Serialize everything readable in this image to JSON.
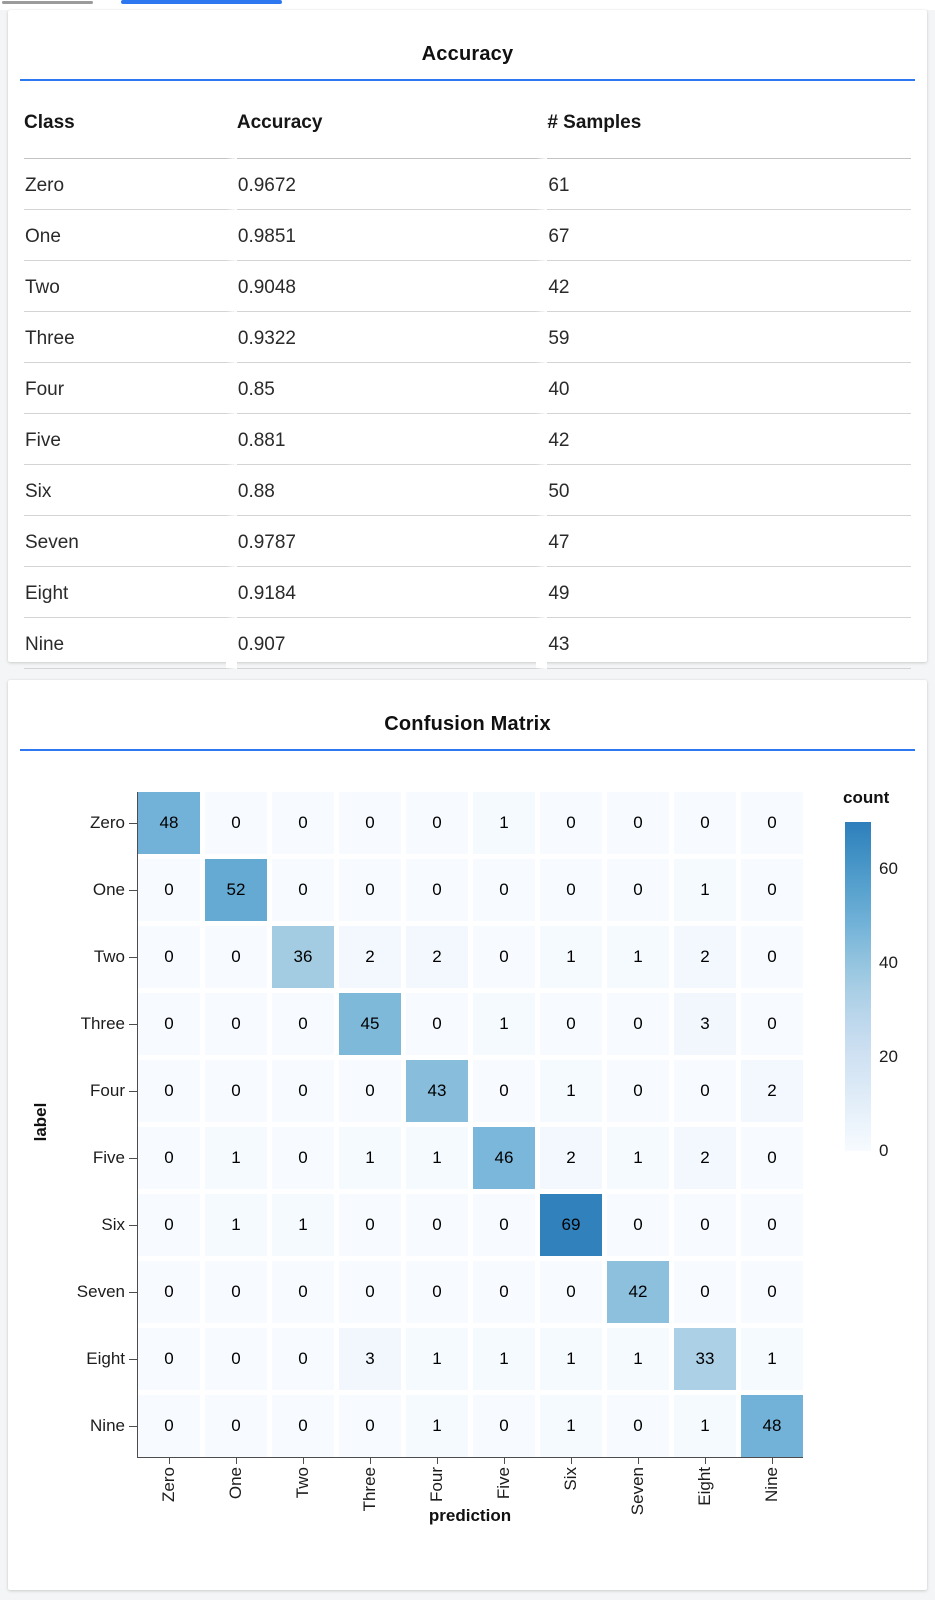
{
  "page": {
    "background": "#f4f5f6",
    "card_background": "#ffffff",
    "accent_blue": "#2d78f0"
  },
  "top_tabs": {
    "inactive_indicator_color": "#9b9b9b",
    "active_indicator_color": "#2d78f0"
  },
  "chart_data": [
    {
      "type": "table",
      "title": "Accuracy",
      "columns": [
        "Class",
        "Accuracy",
        "# Samples"
      ],
      "rows": [
        [
          "Zero",
          "0.9672",
          "61"
        ],
        [
          "One",
          "0.9851",
          "67"
        ],
        [
          "Two",
          "0.9048",
          "42"
        ],
        [
          "Three",
          "0.9322",
          "59"
        ],
        [
          "Four",
          "0.85",
          "40"
        ],
        [
          "Five",
          "0.881",
          "42"
        ],
        [
          "Six",
          "0.88",
          "50"
        ],
        [
          "Seven",
          "0.9787",
          "47"
        ],
        [
          "Eight",
          "0.9184",
          "49"
        ],
        [
          "Nine",
          "0.907",
          "43"
        ]
      ]
    },
    {
      "type": "heatmap",
      "title": "Confusion Matrix",
      "xlabel": "prediction",
      "ylabel": "label",
      "x_categories": [
        "Zero",
        "One",
        "Two",
        "Three",
        "Four",
        "Five",
        "Six",
        "Seven",
        "Eight",
        "Nine"
      ],
      "y_categories": [
        "Zero",
        "One",
        "Two",
        "Three",
        "Four",
        "Five",
        "Six",
        "Seven",
        "Eight",
        "Nine"
      ],
      "matrix": [
        [
          48,
          0,
          0,
          0,
          0,
          1,
          0,
          0,
          0,
          0
        ],
        [
          0,
          52,
          0,
          0,
          0,
          0,
          0,
          0,
          1,
          0
        ],
        [
          0,
          0,
          36,
          2,
          2,
          0,
          1,
          1,
          2,
          0
        ],
        [
          0,
          0,
          0,
          45,
          0,
          1,
          0,
          0,
          3,
          0
        ],
        [
          0,
          0,
          0,
          0,
          43,
          0,
          1,
          0,
          0,
          2
        ],
        [
          0,
          1,
          0,
          1,
          1,
          46,
          2,
          1,
          2,
          0
        ],
        [
          0,
          1,
          1,
          0,
          0,
          0,
          69,
          0,
          0,
          0
        ],
        [
          0,
          0,
          0,
          0,
          0,
          0,
          0,
          42,
          0,
          0
        ],
        [
          0,
          0,
          0,
          3,
          1,
          1,
          1,
          1,
          33,
          1
        ],
        [
          0,
          0,
          0,
          0,
          1,
          0,
          1,
          0,
          1,
          48
        ]
      ],
      "legend": {
        "title": "count",
        "ticks": [
          0,
          20,
          40,
          60
        ],
        "domain": [
          0,
          70
        ]
      },
      "color_scheme": "blues",
      "grid": false,
      "legend_position": "right"
    }
  ]
}
